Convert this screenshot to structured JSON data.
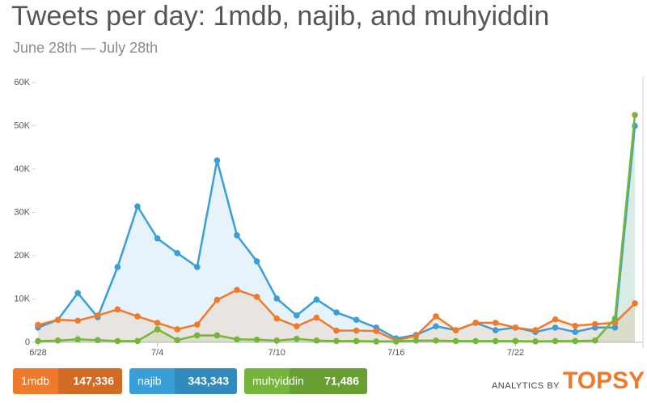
{
  "chart_data": {
    "type": "line",
    "title": "Tweets per day: 1mdb, najib, and muhyiddin",
    "subtitle": "June 28th — July 28th",
    "categories": [
      "6/28",
      null,
      null,
      null,
      null,
      null,
      "7/4",
      null,
      null,
      null,
      null,
      null,
      "7/10",
      null,
      null,
      null,
      null,
      null,
      "7/16",
      null,
      null,
      null,
      null,
      null,
      "7/22",
      null,
      null,
      null,
      null,
      null,
      null
    ],
    "ylim": [
      0,
      60000
    ],
    "yticks": [
      {
        "value": 0,
        "label": "0"
      },
      {
        "value": 10000,
        "label": "10K"
      },
      {
        "value": 20000,
        "label": "20K"
      },
      {
        "value": 30000,
        "label": "30K"
      },
      {
        "value": 40000,
        "label": "40K"
      },
      {
        "value": 50000,
        "label": "50K"
      },
      {
        "value": 60000,
        "label": "60K"
      }
    ],
    "series": [
      {
        "name": "najib",
        "color": "#3a9fd8",
        "total": "343,343",
        "values": [
          3400,
          5200,
          11400,
          5800,
          17400,
          31400,
          24000,
          20600,
          17400,
          42000,
          24700,
          18700,
          10100,
          6200,
          9900,
          6900,
          5200,
          3400,
          900,
          1700,
          3700,
          2800,
          4500,
          2800,
          3400,
          2400,
          3400,
          2400,
          3400,
          3400,
          50000
        ]
      },
      {
        "name": "1mdb",
        "color": "#ef7a2b",
        "total": "147,336",
        "values": [
          4000,
          5200,
          5000,
          6200,
          7600,
          6000,
          4500,
          3000,
          4100,
          9800,
          12100,
          10500,
          5500,
          3700,
          5700,
          2700,
          2700,
          2600,
          400,
          1500,
          6000,
          2800,
          4500,
          4500,
          3400,
          2800,
          5300,
          3800,
          4200,
          4500,
          9000
        ]
      },
      {
        "name": "muhyiddin",
        "color": "#76b53b",
        "total": "71,486",
        "values": [
          300,
          400,
          700,
          500,
          300,
          300,
          3000,
          500,
          1600,
          1600,
          700,
          600,
          400,
          800,
          400,
          300,
          300,
          200,
          200,
          400,
          400,
          300,
          300,
          300,
          300,
          200,
          300,
          300,
          400,
          5500,
          52500
        ]
      }
    ],
    "branding": {
      "prefix": "ANALYTICS BY",
      "name": "TOPSY"
    }
  }
}
